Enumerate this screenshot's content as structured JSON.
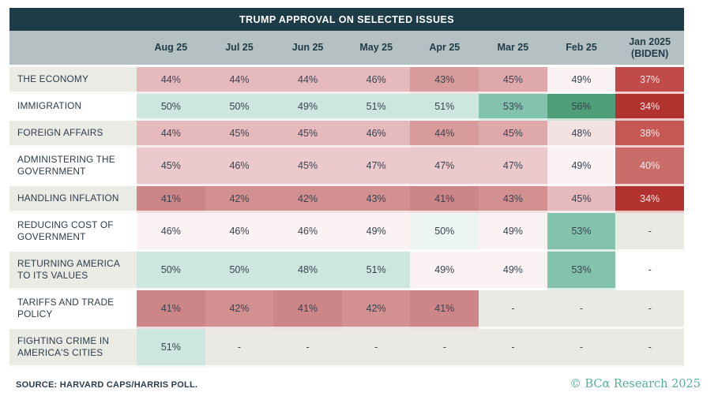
{
  "title": "TRUMP APPROVAL ON SELECTED ISSUES",
  "chart_data": {
    "type": "table",
    "title": "TRUMP APPROVAL ON SELECTED ISSUES",
    "columns": [
      "Aug 25",
      "Jul 25",
      "Jun 25",
      "May 25",
      "Apr 25",
      "Mar 25",
      "Feb 25",
      "Jan 2025\n(BIDEN)"
    ],
    "rows": [
      {
        "label": "THE ECONOMY",
        "label_bg": "#ebebe6",
        "values": [
          "44%",
          "44%",
          "44%",
          "46%",
          "43%",
          "45%",
          "49%",
          "37%"
        ],
        "colors": [
          "pink5",
          "pink5",
          "pink5",
          "pink5",
          "pink3",
          "pink4",
          "pink8",
          "red2"
        ]
      },
      {
        "label": "IMMIGRATION",
        "label_bg": "#ffffff",
        "values": [
          "50%",
          "50%",
          "49%",
          "51%",
          "51%",
          "53%",
          "56%",
          "34%"
        ],
        "colors": [
          "teal1",
          "teal1",
          "teal1",
          "teal1",
          "teal1",
          "teal2",
          "teal3",
          "red1"
        ]
      },
      {
        "label": "FOREIGN AFFAIRS",
        "label_bg": "#ebebe6",
        "values": [
          "44%",
          "45%",
          "45%",
          "46%",
          "44%",
          "45%",
          "48%",
          "38%"
        ],
        "colors": [
          "pink5",
          "pink5",
          "pink5",
          "pink5",
          "pink3",
          "pink4",
          "pink7",
          "red3"
        ]
      },
      {
        "label": "ADMINISTERING THE GOVERNMENT",
        "label_bg": "#ffffff",
        "values": [
          "45%",
          "46%",
          "45%",
          "47%",
          "47%",
          "47%",
          "49%",
          "40%"
        ],
        "colors": [
          "pink6",
          "pink6",
          "pink6",
          "pink6",
          "pink6",
          "pink6",
          "pink8",
          "red4"
        ]
      },
      {
        "label": "HANDLING INFLATION",
        "label_bg": "#ebebe6",
        "values": [
          "41%",
          "42%",
          "42%",
          "43%",
          "41%",
          "43%",
          "45%",
          "34%"
        ],
        "colors": [
          "pink1",
          "pink2",
          "pink2",
          "pink2",
          "pink1",
          "pink2",
          "pink5",
          "red1"
        ]
      },
      {
        "label": "REDUCING COST OF GOVERNMENT",
        "label_bg": "#ffffff",
        "values": [
          "46%",
          "46%",
          "46%",
          "49%",
          "50%",
          "49%",
          "53%",
          "-"
        ],
        "colors": [
          "pink8",
          "pink8",
          "pink8",
          "pink8",
          "tealpale",
          "pink8",
          "teal2",
          "gray"
        ]
      },
      {
        "label": "RETURNING AMERICA TO ITS VALUES",
        "label_bg": "#ebebe6",
        "values": [
          "50%",
          "50%",
          "48%",
          "51%",
          "49%",
          "49%",
          "53%",
          "-"
        ],
        "colors": [
          "teal1",
          "teal1",
          "teal1",
          "teal1",
          "pink8",
          "pink8",
          "teal2",
          "white"
        ]
      },
      {
        "label": "TARIFFS AND TRADE POLICY",
        "label_bg": "#ffffff",
        "values": [
          "41%",
          "42%",
          "41%",
          "42%",
          "41%",
          "-",
          "-",
          "-"
        ],
        "colors": [
          "pink1",
          "pink2",
          "pink1",
          "pink2",
          "pink1",
          "gray",
          "gray",
          "gray"
        ]
      },
      {
        "label": "FIGHTING CRIME IN AMERICA'S CITIES",
        "label_bg": "#ebebe6",
        "values": [
          "51%",
          "-",
          "-",
          "-",
          "-",
          "-",
          "-",
          "-"
        ],
        "colors": [
          "teal1",
          "gray",
          "gray",
          "gray",
          "gray",
          "gray",
          "gray",
          "gray"
        ]
      }
    ],
    "legend_position": "none",
    "note": "SOURCE: HARVARD CAPS/HARRIS POLL."
  },
  "palette": {
    "red1": "#b23230",
    "red2": "#c14b48",
    "red3": "#c65854",
    "red4": "#ca6d6a",
    "pink1": "#cd8687",
    "pink2": "#d29090",
    "pink3": "#d89b9b",
    "pink4": "#dfa9ab",
    "pink5": "#e6b9bd",
    "pink6": "#ecc9cc",
    "pink7": "#f3e2e3",
    "pink8": "#faf2f3",
    "tealpale": "#ecf5f2",
    "teal1": "#cde7e0",
    "teal2": "#83c2ad",
    "teal3": "#4e9e78",
    "gray": "#eae9e4",
    "white": "#ffffff"
  },
  "light_text_keys": [
    "red1",
    "red2",
    "red3",
    "red4"
  ],
  "colors": {
    "titlebar_bg": "#1e3c47",
    "header_bg": "#b5c0c2",
    "header_text": "#1e3c47",
    "cell_text": "#39434f",
    "light_cell_text": "#f8ecec",
    "credit_text": "#55b098"
  },
  "footer": {
    "source": "SOURCE: HARVARD CAPS/HARRIS POLL.",
    "credit": "© BCα Research 2025"
  }
}
